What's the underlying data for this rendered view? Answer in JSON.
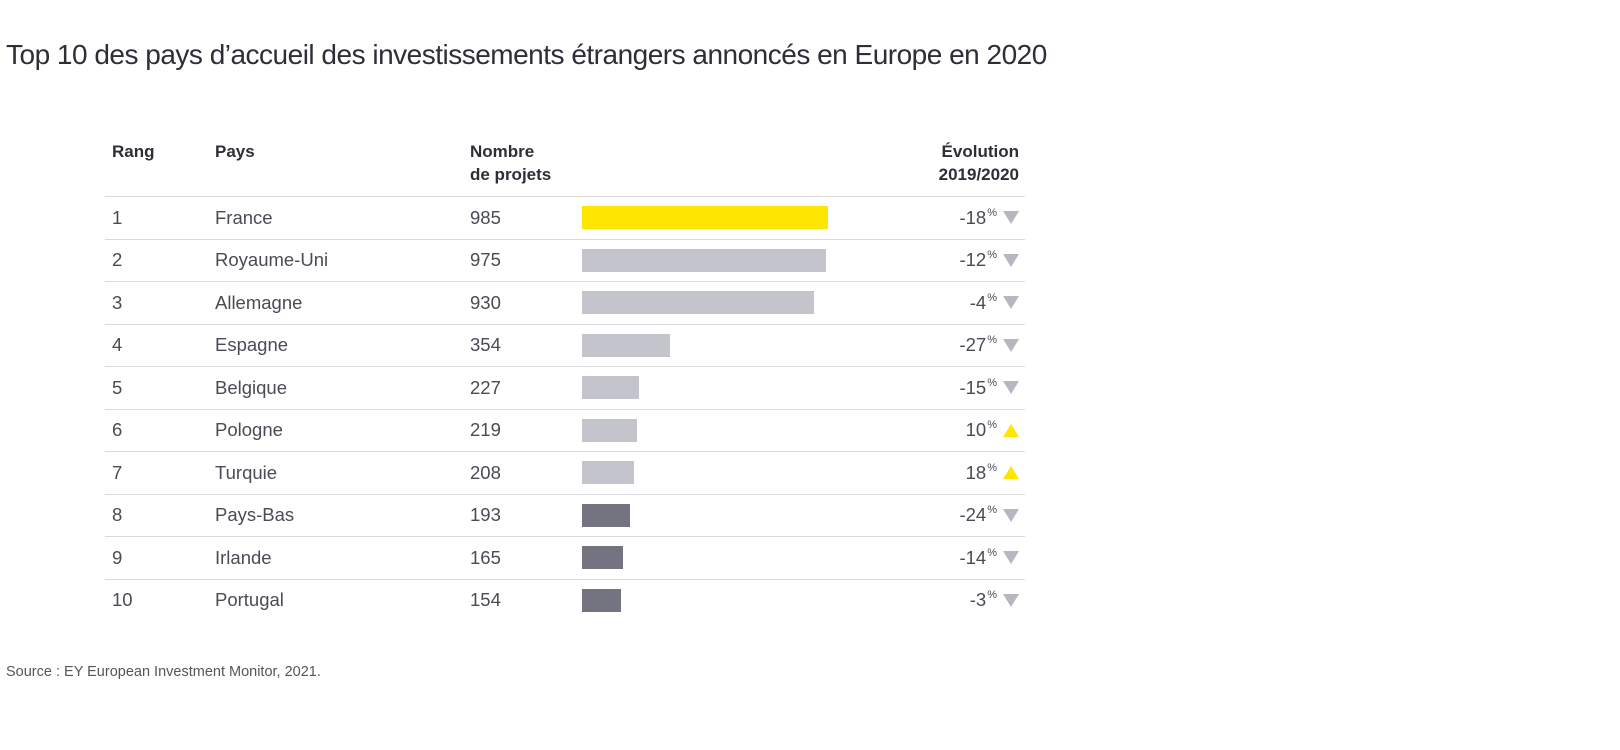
{
  "title": "Top 10 des pays d’accueil des investissements étrangers annoncés en Europe en 2020",
  "source": "Source : EY European Investment Monitor, 2021.",
  "table": {
    "headers": {
      "rank": "Rang",
      "country": "Pays",
      "projects_line1": "Nombre",
      "projects_line2": "de projets",
      "evolution_line1": "Évolution",
      "evolution_line2": "2019/2020"
    },
    "percent_sign": "%"
  },
  "colors": {
    "accent_yellow": "#FFE600",
    "bar_light_gray": "#C4C4CD",
    "bar_dark_gray": "#747480",
    "triangle_down_gray": "#B7B7C0",
    "triangle_up_yellow": "#FFE600",
    "text_dark": "#2E2E38",
    "text_body": "#4B4B55",
    "separator": "#DADADE"
  },
  "chart_data": {
    "type": "bar",
    "title": "Top 10 des pays d’accueil des investissements étrangers annoncés en Europe en 2020",
    "columns": [
      "Rang",
      "Pays",
      "Nombre de projets",
      "Évolution 2019/2020"
    ],
    "ranks": [
      "1",
      "2",
      "3",
      "4",
      "5",
      "6",
      "7",
      "8",
      "9",
      "10"
    ],
    "categories": [
      "France",
      "Royaume-Uni",
      "Allemagne",
      "Espagne",
      "Belgique",
      "Pologne",
      "Turquie",
      "Pays-Bas",
      "Irlande",
      "Portugal"
    ],
    "values": [
      985,
      975,
      930,
      354,
      227,
      219,
      208,
      193,
      165,
      154
    ],
    "evolution_pct": [
      -18,
      -12,
      -4,
      -27,
      -15,
      10,
      18,
      -24,
      -14,
      -3
    ],
    "evolution_direction": [
      "down",
      "down",
      "down",
      "down",
      "down",
      "up",
      "up",
      "down",
      "down",
      "down"
    ],
    "bar_colors": [
      "#FFE600",
      "#C4C4CD",
      "#C4C4CD",
      "#C4C4CD",
      "#C4C4CD",
      "#C4C4CD",
      "#C4C4CD",
      "#747480",
      "#747480",
      "#747480"
    ],
    "xlim": [
      0,
      985
    ],
    "legend": "off",
    "grid": "off",
    "source": "Source : EY European Investment Monitor, 2021."
  }
}
